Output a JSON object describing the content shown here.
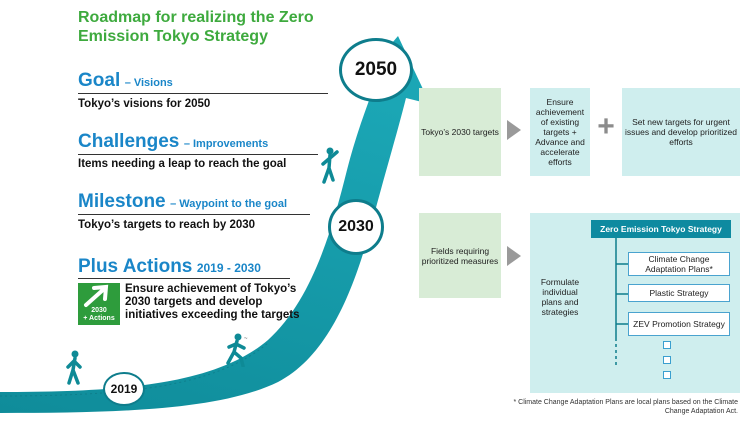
{
  "title": "Roadmap for realizing the Zero Emission Tokyo Strategy",
  "sections": {
    "goal": {
      "heading": "Goal",
      "subheading": "– Visions",
      "description": "Tokyo’s visions for 2050"
    },
    "challenges": {
      "heading": "Challenges",
      "subheading": "– Improvements",
      "description": "Items needing a leap to reach the goal"
    },
    "milestone": {
      "heading": "Milestone",
      "subheading": "– Waypoint to the goal",
      "description": "Tokyo’s targets to reach by 2030"
    },
    "plus_actions": {
      "heading": "Plus Actions",
      "subheading": "2019 - 2030",
      "description": "Ensure achievement of Tokyo’s 2030 targets and develop initiatives exceeding the targets",
      "icon_caption_1": "2030",
      "icon_caption_2": "+ Actions"
    }
  },
  "years": {
    "start": "2019",
    "milestone": "2030",
    "goal": "2050"
  },
  "flow_top": {
    "box1": "Tokyo’s 2030 targets",
    "box2": "Ensure achievement of existing targets + Advance and accelerate efforts",
    "box3": "Set new targets for urgent issues and develop prioritized efforts",
    "plus_symbol": "+"
  },
  "flow_bottom": {
    "box1": "Fields requiring prioritized measures",
    "formulate": "Formulate individual plans and strategies",
    "header": "Zero Emission Tokyo Strategy",
    "items": [
      "Climate Change Adaptation Plans*",
      "Plastic Strategy",
      "ZEV Promotion Strategy"
    ]
  },
  "footnote": "* Climate Change Adaptation Plans are local plans based on the Climate Change Adaptation Act.",
  "colors": {
    "title_green": "#3eaa3e",
    "heading_blue": "#1a86c8",
    "arrow_teal": "#1497a8",
    "arrow_dark": "#0e7d8c",
    "green_box": "#d8ecd6",
    "teal_box": "#cfeeee",
    "strategy_header": "#0e8aa0"
  }
}
